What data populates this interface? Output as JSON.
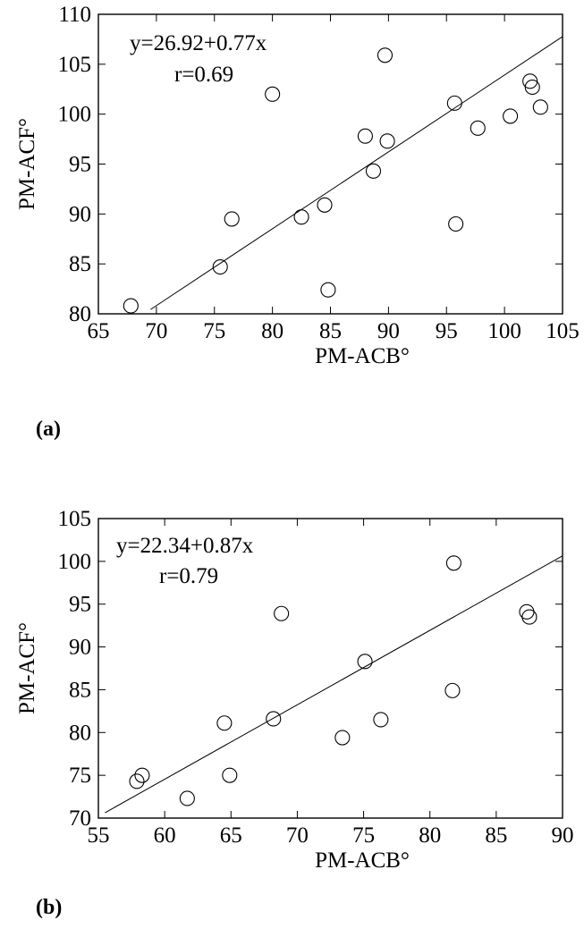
{
  "chart_data": [
    {
      "type": "scatter",
      "panel_label": "(a)",
      "xlabel": "PM-ACB°",
      "ylabel": "PM-ACF°",
      "xlim": [
        65,
        105
      ],
      "ylim": [
        80,
        110
      ],
      "xticks": [
        65,
        70,
        75,
        80,
        85,
        90,
        95,
        100,
        105
      ],
      "yticks": [
        80,
        85,
        90,
        95,
        100,
        105,
        110
      ],
      "annotations": [
        "y=26.92+0.77x",
        "r=0.69"
      ],
      "fit": {
        "intercept": 26.92,
        "slope": 0.77,
        "x_range": [
          69.5,
          105
        ]
      },
      "marker": "open-circle",
      "grid": false,
      "points": [
        {
          "x": 67.8,
          "y": 80.8
        },
        {
          "x": 75.5,
          "y": 84.7
        },
        {
          "x": 76.5,
          "y": 89.5
        },
        {
          "x": 80.0,
          "y": 102.0
        },
        {
          "x": 82.5,
          "y": 89.7
        },
        {
          "x": 84.5,
          "y": 90.9
        },
        {
          "x": 84.8,
          "y": 82.4
        },
        {
          "x": 88.0,
          "y": 97.8
        },
        {
          "x": 88.7,
          "y": 94.3
        },
        {
          "x": 89.7,
          "y": 105.9
        },
        {
          "x": 89.9,
          "y": 97.3
        },
        {
          "x": 95.7,
          "y": 101.1
        },
        {
          "x": 95.8,
          "y": 89.0
        },
        {
          "x": 97.7,
          "y": 98.6
        },
        {
          "x": 100.5,
          "y": 99.8
        },
        {
          "x": 102.2,
          "y": 103.3
        },
        {
          "x": 102.4,
          "y": 102.7
        },
        {
          "x": 103.1,
          "y": 100.7
        }
      ]
    },
    {
      "type": "scatter",
      "panel_label": "(b)",
      "xlabel": "PM-ACB°",
      "ylabel": "PM-ACF°",
      "xlim": [
        55,
        90
      ],
      "ylim": [
        70,
        105
      ],
      "xticks": [
        55,
        60,
        65,
        70,
        75,
        80,
        85,
        90
      ],
      "yticks": [
        70,
        75,
        80,
        85,
        90,
        95,
        100,
        105
      ],
      "annotations": [
        "y=22.34+0.87x",
        "r=0.79"
      ],
      "fit": {
        "intercept": 22.34,
        "slope": 0.87,
        "x_range": [
          55.5,
          90
        ]
      },
      "marker": "open-circle",
      "grid": false,
      "points": [
        {
          "x": 57.9,
          "y": 74.3
        },
        {
          "x": 58.3,
          "y": 75.0
        },
        {
          "x": 61.7,
          "y": 72.3
        },
        {
          "x": 64.5,
          "y": 81.1
        },
        {
          "x": 64.9,
          "y": 75.0
        },
        {
          "x": 68.2,
          "y": 81.6
        },
        {
          "x": 68.8,
          "y": 93.9
        },
        {
          "x": 73.4,
          "y": 79.4
        },
        {
          "x": 75.1,
          "y": 88.3
        },
        {
          "x": 76.3,
          "y": 81.5
        },
        {
          "x": 81.7,
          "y": 84.9
        },
        {
          "x": 81.8,
          "y": 99.8
        },
        {
          "x": 87.3,
          "y": 94.1
        },
        {
          "x": 87.5,
          "y": 93.5
        }
      ]
    }
  ]
}
